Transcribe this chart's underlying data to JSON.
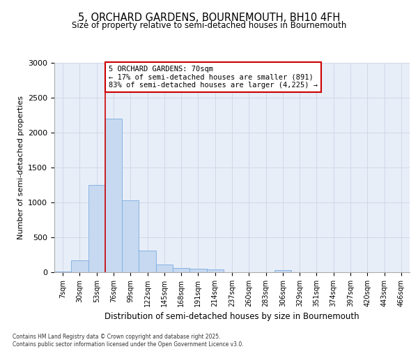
{
  "title": "5, ORCHARD GARDENS, BOURNEMOUTH, BH10 4FH",
  "subtitle": "Size of property relative to semi-detached houses in Bournemouth",
  "xlabel": "Distribution of semi-detached houses by size in Bournemouth",
  "ylabel": "Number of semi-detached properties",
  "footer_line1": "Contains HM Land Registry data © Crown copyright and database right 2025.",
  "footer_line2": "Contains public sector information licensed under the Open Government Licence v3.0.",
  "bin_labels": [
    "7sqm",
    "30sqm",
    "53sqm",
    "76sqm",
    "99sqm",
    "122sqm",
    "145sqm",
    "168sqm",
    "191sqm",
    "214sqm",
    "237sqm",
    "260sqm",
    "283sqm",
    "306sqm",
    "329sqm",
    "351sqm",
    "374sqm",
    "397sqm",
    "420sqm",
    "443sqm",
    "466sqm"
  ],
  "bar_values": [
    15,
    170,
    1250,
    2200,
    1030,
    310,
    110,
    60,
    55,
    40,
    5,
    0,
    0,
    30,
    0,
    0,
    0,
    0,
    0,
    0,
    0
  ],
  "bar_color": "#c6d9f0",
  "bar_edge_color": "#7aace0",
  "grid_color": "#d0d8e8",
  "bg_color": "#e8eef8",
  "red_line_color": "#cc0000",
  "annotation_title": "5 ORCHARD GARDENS: 70sqm",
  "annotation_line1": "← 17% of semi-detached houses are smaller (891)",
  "annotation_line2": "83% of semi-detached houses are larger (4,225) →",
  "annotation_box_color": "#cc0000",
  "ylim": [
    0,
    3000
  ],
  "yticks": [
    0,
    500,
    1000,
    1500,
    2000,
    2500,
    3000
  ]
}
